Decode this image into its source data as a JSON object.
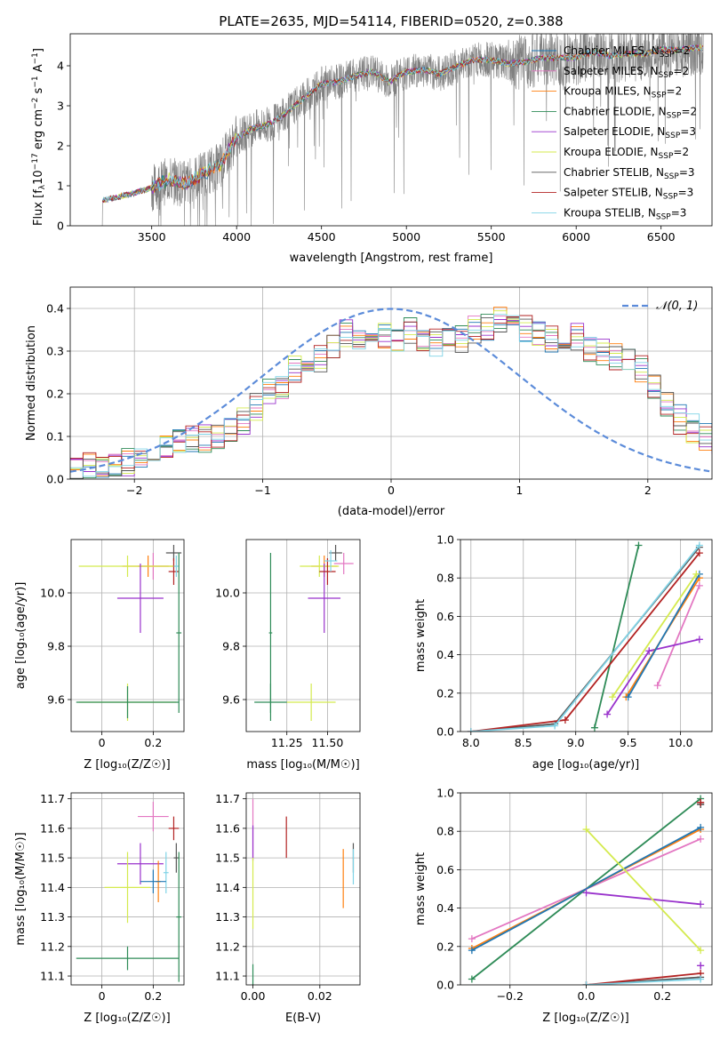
{
  "chart_data": [
    {
      "id": "spectrum",
      "type": "line",
      "title": "PLATE=2635, MJD=54114, FIBERID=0520, z=0.388",
      "xlabel": "wavelength [Angstrom, rest frame]",
      "ylabel": "Flux [f$_\\lambda$10$^{-17}$ erg cm$^{-2}$ s$^{-1}$ A$^{-1}$]",
      "xlim": [
        3020,
        6800
      ],
      "ylim": [
        0,
        4.8
      ],
      "xticks": [
        3500,
        4000,
        4500,
        5000,
        5500,
        6000,
        6500
      ],
      "yticks": [
        0,
        1,
        2,
        3,
        4
      ],
      "grid": false,
      "legend_position": "upper right",
      "data_range": [
        3200,
        6750
      ],
      "legend": [
        {
          "label": "Chabrier MILES, N",
          "sub": "SSP",
          "tail": "=2",
          "color": "#1f77b4"
        },
        {
          "label": "Salpeter MILES, N",
          "sub": "SSP",
          "tail": "=2",
          "color": "#e377c2"
        },
        {
          "label": "Kroupa MILES, N",
          "sub": "SSP",
          "tail": "=2",
          "color": "#ff7f0e"
        },
        {
          "label": "Chabrier ELODIE, N",
          "sub": "SSP",
          "tail": "=2",
          "color": "#2e8b57"
        },
        {
          "label": "Salpeter ELODIE, N",
          "sub": "SSP",
          "tail": "=3",
          "color": "#9932cc"
        },
        {
          "label": "Kroupa ELODIE, N",
          "sub": "SSP",
          "tail": "=2",
          "color": "#d4ea4e"
        },
        {
          "label": "Chabrier STELIB, N",
          "sub": "SSP",
          "tail": "=3",
          "color": "#555555"
        },
        {
          "label": "Salpeter STELIB, N",
          "sub": "SSP",
          "tail": "=3",
          "color": "#b22222"
        },
        {
          "label": "Kroupa STELIB, N",
          "sub": "SSP",
          "tail": "=3",
          "color": "#7fd3e6"
        }
      ],
      "model_continuum": [
        [
          3200,
          0.62
        ],
        [
          3300,
          0.72
        ],
        [
          3400,
          0.82
        ],
        [
          3500,
          0.95
        ],
        [
          3600,
          1.15
        ],
        [
          3700,
          1.05
        ],
        [
          3800,
          1.3
        ],
        [
          3900,
          1.5
        ],
        [
          4000,
          2.2
        ],
        [
          4100,
          2.45
        ],
        [
          4200,
          2.55
        ],
        [
          4300,
          2.85
        ],
        [
          4400,
          3.2
        ],
        [
          4500,
          3.55
        ],
        [
          4600,
          3.6
        ],
        [
          4700,
          3.75
        ],
        [
          4800,
          3.85
        ],
        [
          4900,
          3.6
        ],
        [
          5000,
          3.85
        ],
        [
          5100,
          3.9
        ],
        [
          5200,
          3.8
        ],
        [
          5300,
          4.0
        ],
        [
          5400,
          4.15
        ],
        [
          5500,
          4.15
        ],
        [
          5600,
          4.05
        ],
        [
          5700,
          4.1
        ],
        [
          5800,
          4.2
        ],
        [
          5900,
          4.2
        ],
        [
          6000,
          4.2
        ],
        [
          6100,
          4.35
        ],
        [
          6200,
          4.25
        ],
        [
          6300,
          4.3
        ],
        [
          6400,
          4.3
        ],
        [
          6500,
          4.4
        ],
        [
          6600,
          4.4
        ],
        [
          6700,
          4.45
        ]
      ],
      "data_color": "#808080"
    },
    {
      "id": "residuals",
      "type": "area",
      "xlabel": "(data-model)/error",
      "ylabel": "Normed distribution",
      "xlim": [
        -2.5,
        2.5
      ],
      "ylim": [
        0,
        0.45
      ],
      "xticks": [
        -2,
        -1,
        0,
        1,
        2
      ],
      "yticks": [
        0.0,
        0.1,
        0.2,
        0.3,
        0.4
      ],
      "grid": true,
      "legend_position": "upper right",
      "legend_label": "𝒩(0, 1)",
      "gauss_color": "#5b8bd9",
      "bin_edges_start": -2.5,
      "bin_width": 0.1,
      "base_hist": [
        0.02,
        0.03,
        0.025,
        0.03,
        0.04,
        0.06,
        0.075,
        0.08,
        0.085,
        0.09,
        0.095,
        0.1,
        0.12,
        0.14,
        0.17,
        0.2,
        0.22,
        0.26,
        0.27,
        0.28,
        0.31,
        0.34,
        0.33,
        0.32,
        0.34,
        0.33,
        0.35,
        0.33,
        0.32,
        0.34,
        0.33,
        0.35,
        0.36,
        0.37,
        0.36,
        0.35,
        0.34,
        0.33,
        0.32,
        0.33,
        0.31,
        0.3,
        0.29,
        0.27,
        0.26,
        0.22,
        0.18,
        0.14,
        0.12,
        0.1,
        0.09,
        0.08,
        0.075,
        0.07,
        0.065,
        0.06,
        0.055,
        0.05,
        0.05,
        0.045
      ],
      "series_colors": [
        "#1f77b4",
        "#e377c2",
        "#ff7f0e",
        "#2e8b57",
        "#9932cc",
        "#d4ea4e",
        "#555555",
        "#b22222",
        "#7fd3e6"
      ]
    },
    {
      "id": "age-vs-Z",
      "type": "scatter",
      "xlabel": "Z [log₁₀(Z/Z☉)]",
      "ylabel": "age  [log₁₀(age/yr)]",
      "xlim": [
        -0.12,
        0.32
      ],
      "ylim": [
        9.48,
        10.2
      ],
      "xticks": [
        0.0,
        0.2
      ],
      "yticks": [
        9.6,
        9.8,
        10.0
      ],
      "grid": true,
      "points": [
        {
          "x": 0.2,
          "y": 10.1,
          "xerr": 0.06,
          "yerr": 0.05,
          "color": "#e377c2"
        },
        {
          "x": 0.18,
          "y": 10.1,
          "xerr": 0.1,
          "yerr": 0.04,
          "color": "#ff7f0e"
        },
        {
          "x": 0.1,
          "y": 10.1,
          "xerr": 0.19,
          "yerr": 0.04,
          "color": "#d4ea4e"
        },
        {
          "x": 0.15,
          "y": 9.98,
          "xerr": 0.09,
          "yerr": 0.13,
          "color": "#9932cc"
        },
        {
          "x": 0.28,
          "y": 10.15,
          "xerr": 0.03,
          "yerr": 0.03,
          "color": "#555555"
        },
        {
          "x": 0.28,
          "y": 10.08,
          "xerr": 0.02,
          "yerr": 0.05,
          "color": "#b22222"
        },
        {
          "x": 0.29,
          "y": 10.1,
          "xerr": 0.01,
          "yerr": 0.04,
          "color": "#7fd3e6"
        },
        {
          "x": 0.1,
          "y": 9.59,
          "xerr": 0.19,
          "yerr": 0.07,
          "color": "#d4ea4e"
        },
        {
          "x": 0.1,
          "y": 9.59,
          "xerr": 0.2,
          "yerr": 0.06,
          "color": "#2e8b57"
        },
        {
          "x": 0.3,
          "y": 9.85,
          "xerr": 0.01,
          "yerr": 0.3,
          "color": "#2e8b57"
        }
      ]
    },
    {
      "id": "age-vs-mass",
      "type": "scatter",
      "xlabel": "mass [log₁₀(M/M☉)]",
      "xlim": [
        11.0,
        11.7
      ],
      "ylim": [
        9.48,
        10.2
      ],
      "xticks": [
        11.25,
        11.5
      ],
      "xtick_labels": [
        "11.25",
        "11.50"
      ],
      "yticks": [
        9.6,
        9.8,
        10.0
      ],
      "grid": true,
      "points": [
        {
          "x": 11.6,
          "y": 10.11,
          "xerr": 0.06,
          "yerr": 0.04,
          "color": "#e377c2"
        },
        {
          "x": 11.48,
          "y": 10.1,
          "xerr": 0.08,
          "yerr": 0.04,
          "color": "#ff7f0e"
        },
        {
          "x": 11.45,
          "y": 10.1,
          "xerr": 0.12,
          "yerr": 0.04,
          "color": "#d4ea4e"
        },
        {
          "x": 11.48,
          "y": 9.98,
          "xerr": 0.1,
          "yerr": 0.13,
          "color": "#9932cc"
        },
        {
          "x": 11.55,
          "y": 10.15,
          "xerr": 0.04,
          "yerr": 0.03,
          "color": "#555555"
        },
        {
          "x": 11.5,
          "y": 10.08,
          "xerr": 0.05,
          "yerr": 0.05,
          "color": "#b22222"
        },
        {
          "x": 11.52,
          "y": 10.12,
          "xerr": 0.04,
          "yerr": 0.04,
          "color": "#7fd3e6"
        },
        {
          "x": 11.4,
          "y": 9.59,
          "xerr": 0.15,
          "yerr": 0.07,
          "color": "#d4ea4e"
        },
        {
          "x": 11.15,
          "y": 9.59,
          "xerr": 0.1,
          "yerr": 0.07,
          "color": "#2e8b57"
        },
        {
          "x": 11.15,
          "y": 9.85,
          "xerr": 0.01,
          "yerr": 0.3,
          "color": "#2e8b57"
        }
      ]
    },
    {
      "id": "massweight-vs-age",
      "type": "line",
      "xlabel": "age  [log₁₀(age/yr)]",
      "ylabel": "mass weight",
      "xlim": [
        7.9,
        10.3
      ],
      "ylim": [
        0,
        1.0
      ],
      "xticks": [
        8.0,
        8.5,
        9.0,
        9.5,
        10.0
      ],
      "xtick_labels": [
        "8.0",
        "8.5",
        "9.0",
        "9.5",
        "10.0"
      ],
      "yticks": [
        0.0,
        0.2,
        0.4,
        0.6,
        0.8,
        1.0
      ],
      "grid": true,
      "series": [
        {
          "color": "#2e8b57",
          "points": [
            [
              9.18,
              0.02
            ],
            [
              9.6,
              0.97
            ]
          ]
        },
        {
          "color": "#e377c2",
          "points": [
            [
              9.78,
              0.24
            ],
            [
              10.18,
              0.76
            ]
          ]
        },
        {
          "color": "#9932cc",
          "points": [
            [
              9.3,
              0.09
            ],
            [
              9.7,
              0.42
            ],
            [
              10.18,
              0.48
            ]
          ]
        },
        {
          "color": "#ff7f0e",
          "points": [
            [
              9.48,
              0.18
            ],
            [
              10.18,
              0.8
            ]
          ]
        },
        {
          "color": "#1f77b4",
          "points": [
            [
              9.5,
              0.18
            ],
            [
              10.18,
              0.82
            ]
          ]
        },
        {
          "color": "#d4ea4e",
          "points": [
            [
              9.35,
              0.18
            ],
            [
              10.15,
              0.82
            ]
          ]
        },
        {
          "color": "#555555",
          "points": [
            [
              8.0,
              0.0
            ],
            [
              8.8,
              0.04
            ],
            [
              10.18,
              0.96
            ]
          ]
        },
        {
          "color": "#b22222",
          "points": [
            [
              8.0,
              0.0
            ],
            [
              8.9,
              0.06
            ],
            [
              10.18,
              0.93
            ]
          ]
        },
        {
          "color": "#7fd3e6",
          "points": [
            [
              8.0,
              0.0
            ],
            [
              8.8,
              0.03
            ],
            [
              10.18,
              0.97
            ]
          ]
        }
      ]
    },
    {
      "id": "mass-vs-Z",
      "type": "scatter",
      "xlabel": "Z [log₁₀(Z/Z☉)]",
      "ylabel": "mass [log₁₀(M/M☉)]",
      "xlim": [
        -0.12,
        0.32
      ],
      "ylim": [
        11.07,
        11.72
      ],
      "xticks": [
        0.0,
        0.2
      ],
      "yticks": [
        11.1,
        11.2,
        11.3,
        11.4,
        11.5,
        11.6,
        11.7
      ],
      "grid": true,
      "points": [
        {
          "x": 0.2,
          "y": 11.64,
          "xerr": 0.06,
          "yerr": 0.05,
          "color": "#e377c2"
        },
        {
          "x": 0.28,
          "y": 11.6,
          "xerr": 0.02,
          "yerr": 0.04,
          "color": "#b22222"
        },
        {
          "x": 0.15,
          "y": 11.48,
          "xerr": 0.09,
          "yerr": 0.07,
          "color": "#9932cc"
        },
        {
          "x": 0.25,
          "y": 11.45,
          "xerr": 0.01,
          "yerr": 0.07,
          "color": "#7fd3e6"
        },
        {
          "x": 0.22,
          "y": 11.42,
          "xerr": 0.01,
          "yerr": 0.07,
          "color": "#ff7f0e"
        },
        {
          "x": 0.2,
          "y": 11.42,
          "xerr": 0.05,
          "yerr": 0.04,
          "color": "#1f77b4"
        },
        {
          "x": 0.1,
          "y": 11.4,
          "xerr": 0.09,
          "yerr": 0.12,
          "color": "#d4ea4e"
        },
        {
          "x": 0.29,
          "y": 11.5,
          "xerr": 0.01,
          "yerr": 0.05,
          "color": "#555555"
        },
        {
          "x": 0.1,
          "y": 11.16,
          "xerr": 0.2,
          "yerr": 0.04,
          "color": "#2e8b57"
        },
        {
          "x": 0.3,
          "y": 11.3,
          "xerr": 0.01,
          "yerr": 0.22,
          "color": "#2e8b57"
        }
      ]
    },
    {
      "id": "mass-vs-EBV",
      "type": "scatter",
      "xlabel": "E(B-V)",
      "xlim": [
        -0.002,
        0.032
      ],
      "ylim": [
        11.07,
        11.72
      ],
      "xticks": [
        0.0,
        0.02
      ],
      "xtick_labels": [
        "0.00",
        "0.02"
      ],
      "yticks": [
        11.1,
        11.2,
        11.3,
        11.4,
        11.5,
        11.6,
        11.7
      ],
      "grid": true,
      "points": [
        {
          "x": 0.0,
          "y": 11.6,
          "xerr": 0,
          "yerr": 0.1,
          "color": "#e377c2"
        },
        {
          "x": 0.0,
          "y": 11.55,
          "xerr": 0,
          "yerr": 0.06,
          "color": "#9932cc"
        },
        {
          "x": 0.0,
          "y": 11.38,
          "xerr": 0,
          "yerr": 0.12,
          "color": "#d4ea4e"
        },
        {
          "x": 0.0,
          "y": 11.1,
          "xerr": 0,
          "yerr": 0.04,
          "color": "#2e8b57"
        },
        {
          "x": 0.01,
          "y": 11.57,
          "xerr": 0,
          "yerr": 0.07,
          "color": "#b22222"
        },
        {
          "x": 0.027,
          "y": 11.43,
          "xerr": 0,
          "yerr": 0.1,
          "color": "#ff7f0e"
        },
        {
          "x": 0.03,
          "y": 11.5,
          "xerr": 0,
          "yerr": 0.05,
          "color": "#555555"
        },
        {
          "x": 0.03,
          "y": 11.47,
          "xerr": 0,
          "yerr": 0.06,
          "color": "#7fd3e6"
        }
      ]
    },
    {
      "id": "massweight-vs-Z",
      "type": "line",
      "xlabel": "Z [log₁₀(Z/Z☉)]",
      "ylabel": "mass weight",
      "xlim": [
        -0.33,
        0.33
      ],
      "ylim": [
        0,
        1.0
      ],
      "xticks": [
        -0.2,
        0.0,
        0.2
      ],
      "xtick_labels": [
        "−0.2",
        "0.0",
        "0.2"
      ],
      "yticks": [
        0.0,
        0.2,
        0.4,
        0.6,
        0.8,
        1.0
      ],
      "grid": true,
      "series": [
        {
          "color": "#2e8b57",
          "points": [
            [
              -0.3,
              0.03
            ],
            [
              0.3,
              0.97
            ]
          ]
        },
        {
          "color": "#e377c2",
          "points": [
            [
              -0.3,
              0.24
            ],
            [
              0.3,
              0.76
            ]
          ]
        },
        {
          "color": "#ff7f0e",
          "points": [
            [
              -0.3,
              0.19
            ],
            [
              0.3,
              0.81
            ]
          ]
        },
        {
          "color": "#1f77b4",
          "points": [
            [
              -0.3,
              0.18
            ],
            [
              0.3,
              0.82
            ]
          ]
        },
        {
          "color": "#9932cc",
          "points": [
            [
              0.0,
              0.48
            ],
            [
              0.3,
              0.42
            ]
          ]
        },
        {
          "color": "#d4ea4e",
          "points": [
            [
              0.0,
              0.81
            ],
            [
              0.3,
              0.18
            ]
          ]
        },
        {
          "color": "#555555",
          "points": [
            [
              0.0,
              0.0
            ],
            [
              0.3,
              0.04
            ]
          ]
        },
        {
          "color": "#b22222",
          "points": [
            [
              0.0,
              0.0
            ],
            [
              0.3,
              0.06
            ]
          ]
        },
        {
          "color": "#7fd3e6",
          "points": [
            [
              0.0,
              0.0
            ],
            [
              0.3,
              0.03
            ]
          ]
        },
        {
          "color": "#9932cc",
          "points": [
            [
              0.3,
              0.1
            ],
            [
              0.3,
              0.1
            ]
          ]
        },
        {
          "color": "#555555",
          "points": [
            [
              0.3,
              0.94
            ],
            [
              0.3,
              0.94
            ]
          ]
        },
        {
          "color": "#b22222",
          "points": [
            [
              0.3,
              0.95
            ],
            [
              0.3,
              0.95
            ]
          ]
        }
      ]
    }
  ]
}
